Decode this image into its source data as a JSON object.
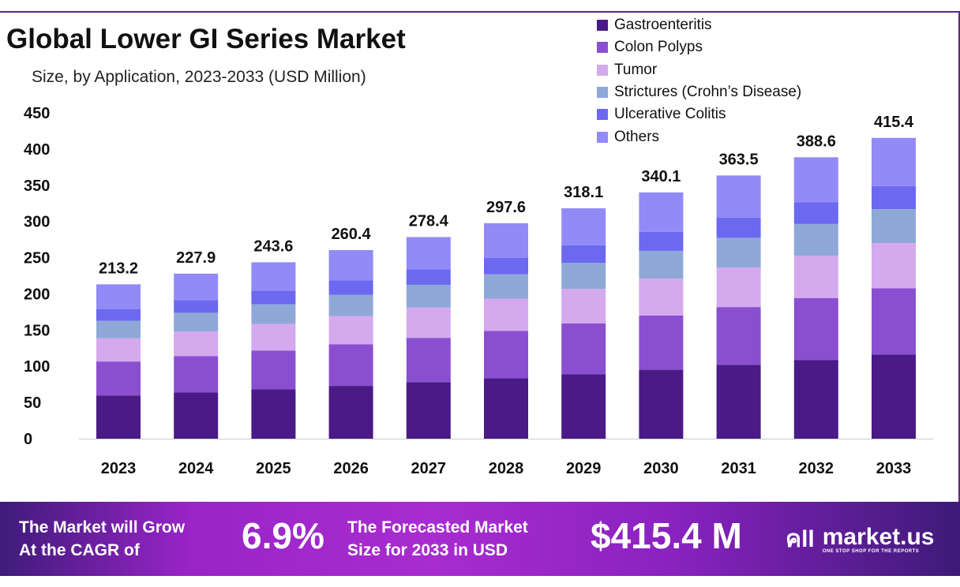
{
  "chart_data": {
    "type": "bar",
    "stacked": true,
    "title": "Global Lower GI Series Market",
    "subtitle": "Size, by Application, 2023-2033 (USD Million)",
    "xlabel": "",
    "ylabel": "",
    "ylim": [
      0,
      450
    ],
    "yticks": [
      0,
      50,
      100,
      150,
      200,
      250,
      300,
      350,
      400,
      450
    ],
    "grid": false,
    "legend_position": "top-right",
    "categories": [
      "2023",
      "2024",
      "2025",
      "2026",
      "2027",
      "2028",
      "2029",
      "2030",
      "2031",
      "2032",
      "2033"
    ],
    "totals": [
      213.2,
      227.9,
      243.6,
      260.4,
      278.4,
      297.6,
      318.1,
      340.1,
      363.5,
      388.6,
      415.4
    ],
    "series": [
      {
        "name": "Gastroenteritis",
        "color": "#4a1a86",
        "values": [
          59.7,
          63.8,
          68.2,
          72.9,
          78.0,
          83.3,
          89.1,
          95.2,
          101.8,
          108.8,
          116.3
        ]
      },
      {
        "name": "Colon Polyps",
        "color": "#8a4fd0",
        "values": [
          46.9,
          50.1,
          53.6,
          57.3,
          61.2,
          65.5,
          70.0,
          74.8,
          80.0,
          85.5,
          91.4
        ]
      },
      {
        "name": "Tumor",
        "color": "#d4a9ee",
        "values": [
          32.0,
          34.2,
          36.5,
          39.1,
          41.8,
          44.6,
          47.7,
          51.0,
          54.5,
          58.3,
          62.3
        ]
      },
      {
        "name": "Strictures (Crohn’s Disease)",
        "color": "#8fa8d8",
        "values": [
          24.1,
          25.8,
          27.5,
          29.4,
          31.5,
          33.6,
          35.9,
          38.4,
          41.1,
          43.9,
          46.9
        ]
      },
      {
        "name": "Ulcerative Colitis",
        "color": "#6c68f0",
        "values": [
          16.4,
          17.5,
          18.8,
          20.1,
          21.4,
          22.9,
          24.5,
          26.2,
          28.0,
          29.9,
          32.0
        ]
      },
      {
        "name": "Others",
        "color": "#928af6",
        "values": [
          34.1,
          36.5,
          39.0,
          41.6,
          44.5,
          47.7,
          50.9,
          54.5,
          58.1,
          62.2,
          66.5
        ]
      }
    ]
  },
  "banner": {
    "cagr_label_1": "The Market will Grow",
    "cagr_label_2": "At the CAGR of",
    "cagr_value": "6.9%",
    "forecast_label_1": "The Forecasted Market",
    "forecast_label_2": "Size for 2033 in USD",
    "forecast_value": "$415.4 M",
    "logo_text": "market.us",
    "logo_tagline": "ONE STOP SHOP FOR THE REPORTS"
  }
}
